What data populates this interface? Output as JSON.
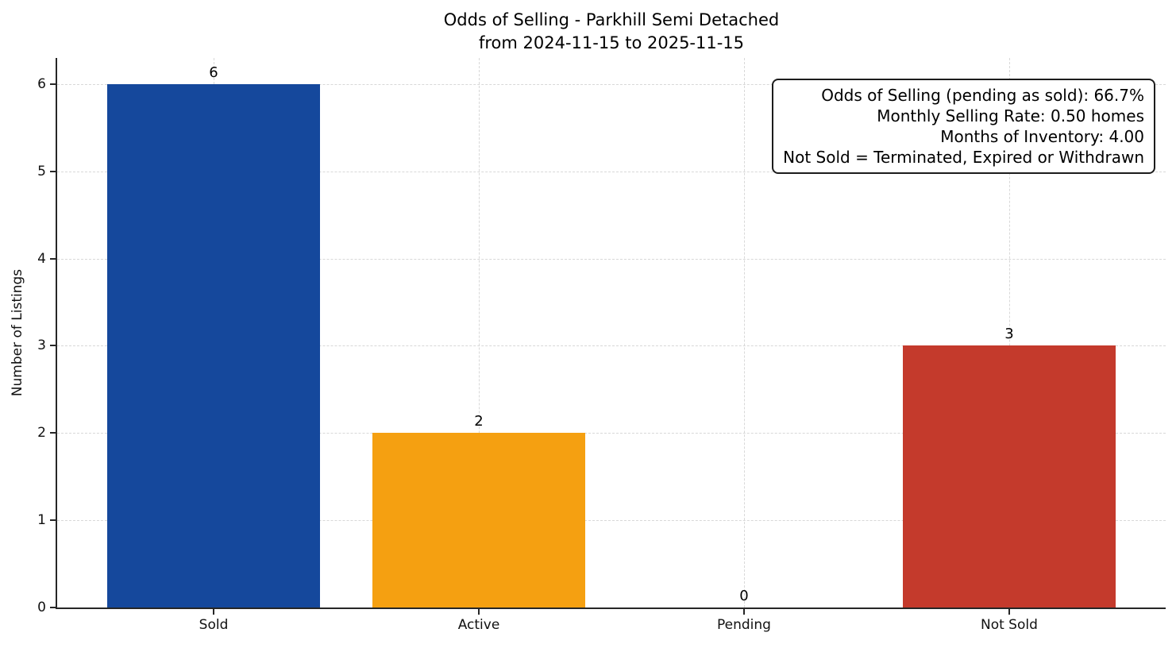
{
  "chart_data": {
    "type": "bar",
    "title_line1": "Odds of Selling - Parkhill Semi Detached",
    "title_line2": "from 2024-11-15 to 2025-11-15",
    "ylabel": "Number of Listings",
    "xlabel": "",
    "categories": [
      "Sold",
      "Active",
      "Pending",
      "Not Sold"
    ],
    "values": [
      6,
      2,
      0,
      3
    ],
    "bar_colors": [
      "#15489c",
      "#f5a011",
      null,
      "#c43a2c"
    ],
    "bar_width_units": 0.8,
    "ylim": [
      0,
      6.3
    ],
    "xlim": [
      -0.59,
      3.59
    ],
    "yticks": [
      0,
      1,
      2,
      3,
      4,
      5,
      6
    ],
    "grid": "dashed, both axes, light gray",
    "legend": "none",
    "annotation": {
      "lines": [
        "Odds of Selling (pending as sold): 66.7%",
        "Monthly Selling Rate: 0.50 homes",
        "Months of Inventory: 4.00",
        "Not Sold = Terminated, Expired or Withdrawn"
      ]
    }
  }
}
